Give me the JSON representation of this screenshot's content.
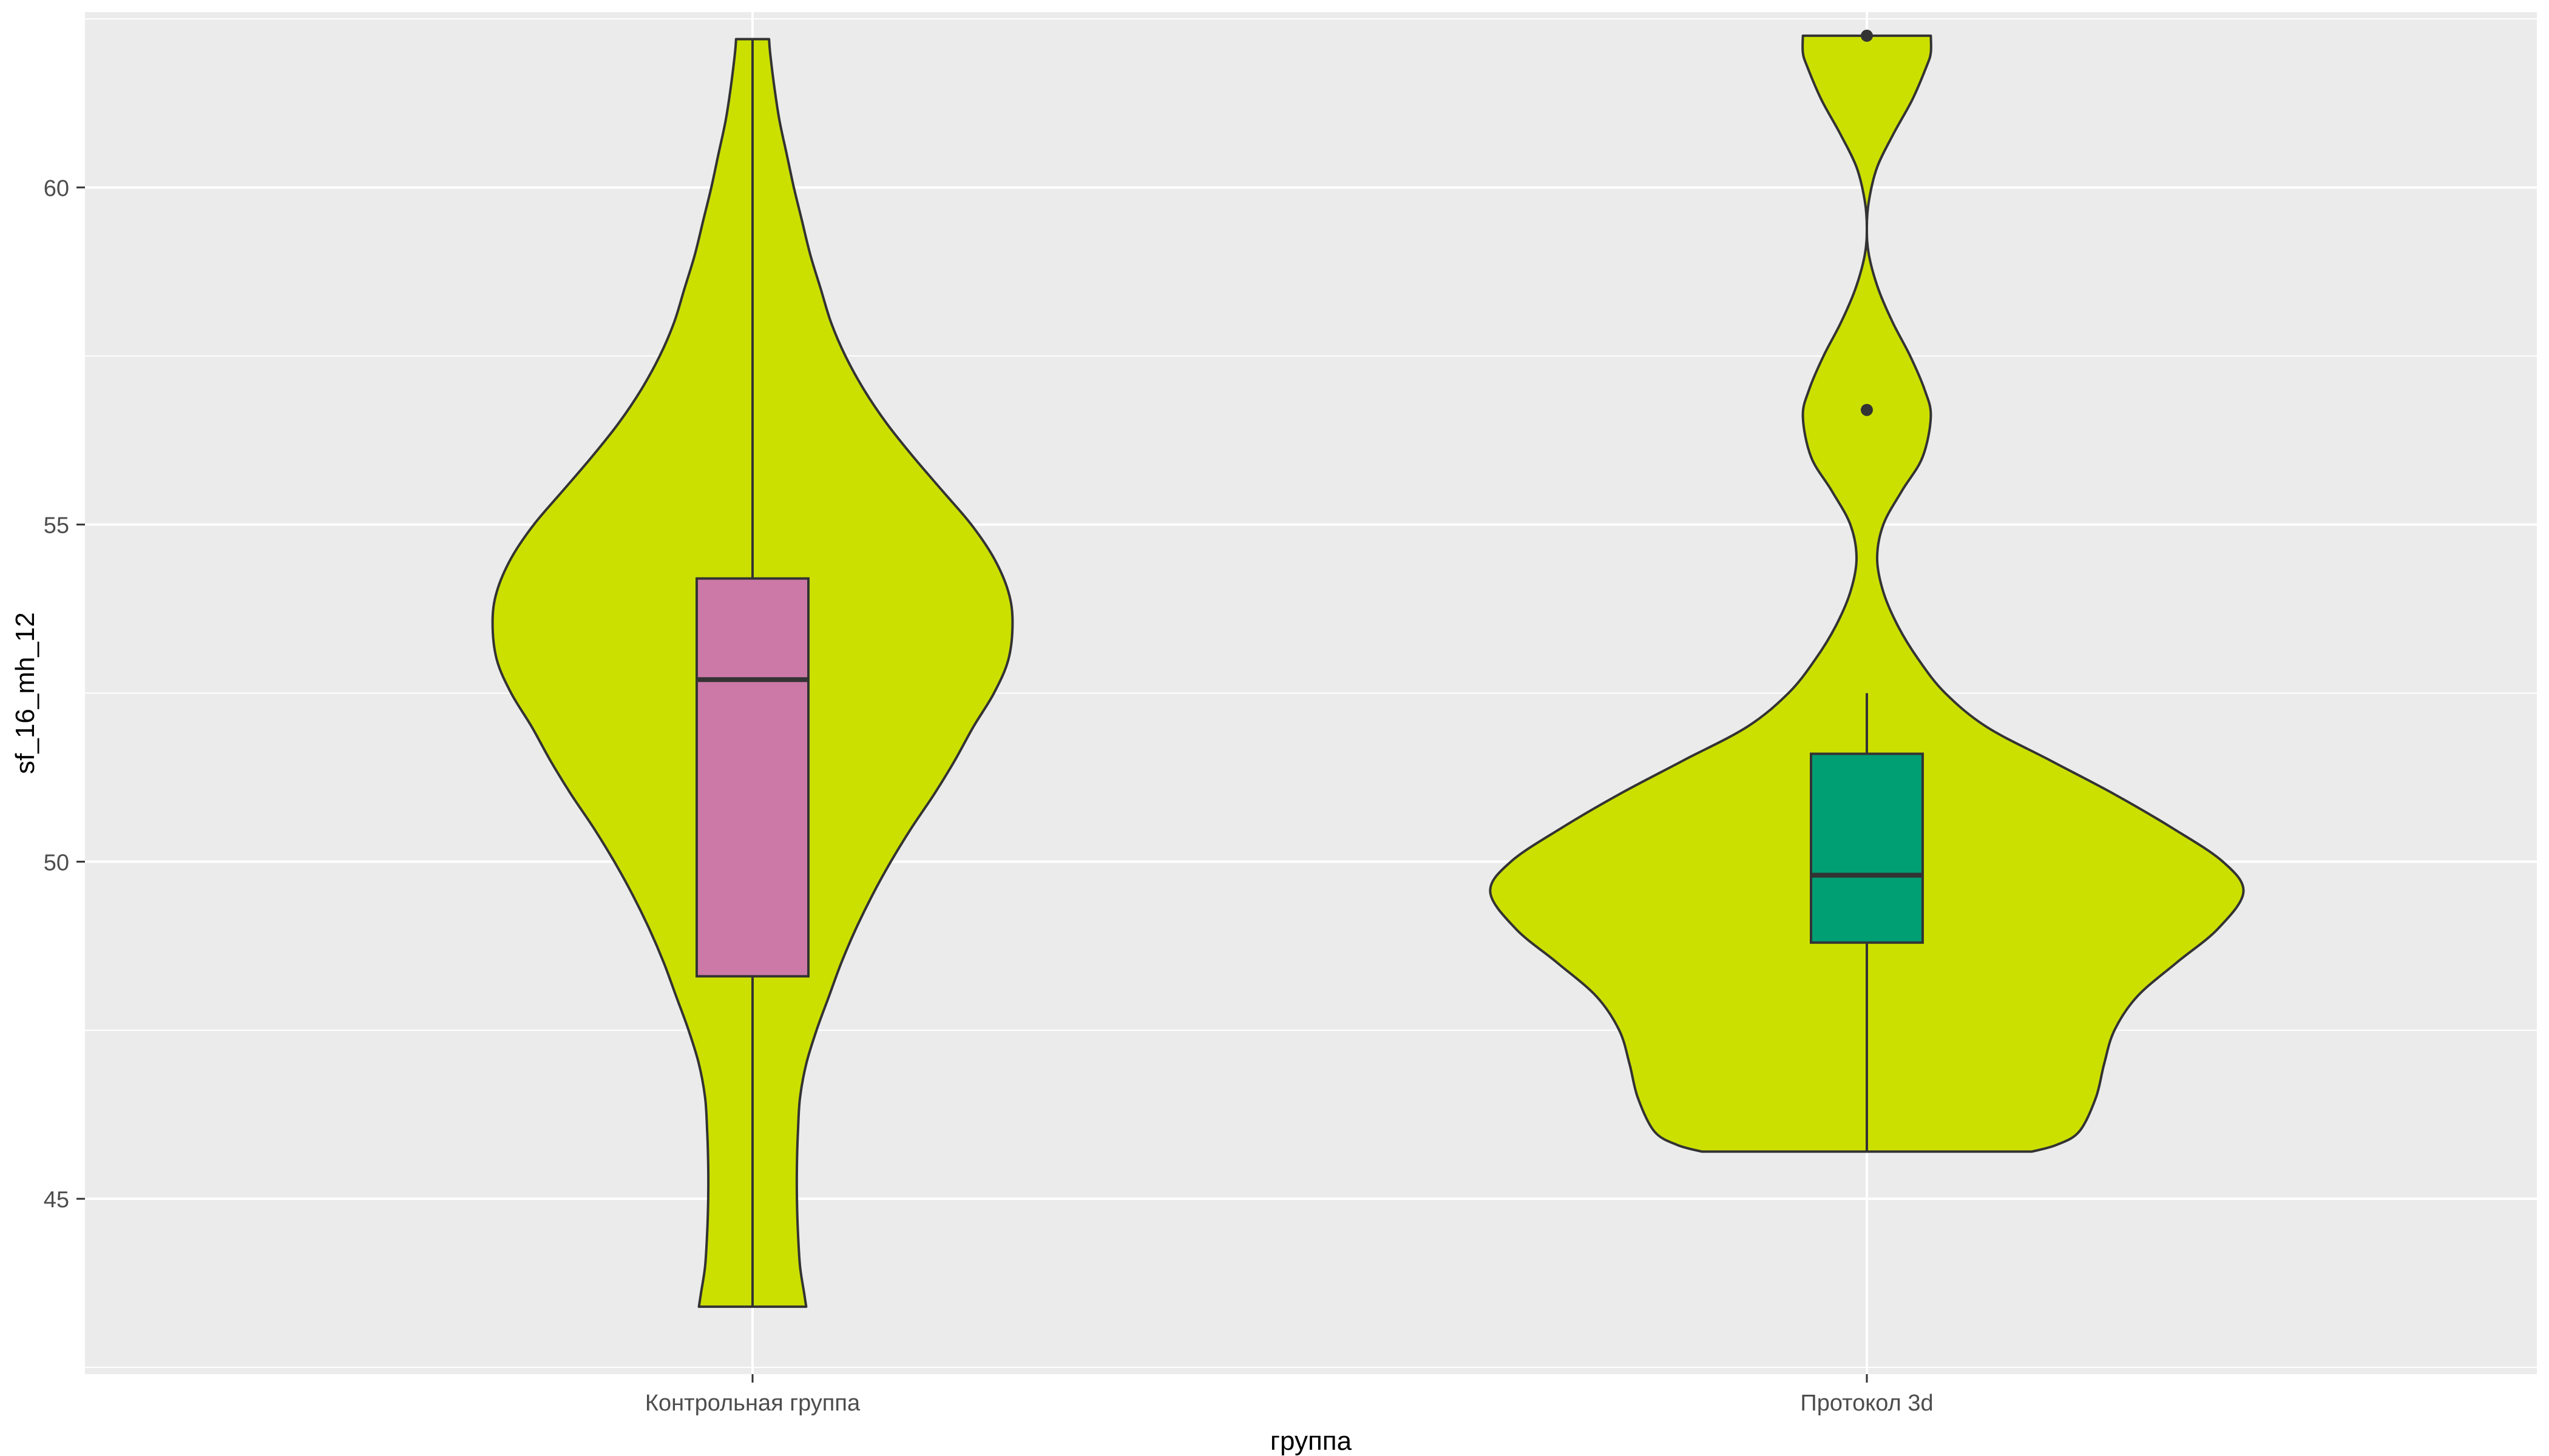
{
  "chart_data": {
    "type": "violin",
    "title": "",
    "xlabel": "группа",
    "ylabel": "sf_16_mh_12",
    "ylim": [
      42.4,
      62.6
    ],
    "yticks": [
      45,
      50,
      55,
      60
    ],
    "grid": true,
    "legend": "none",
    "categories": [
      "Контрольная группа",
      "Протокол 3d"
    ],
    "colors": {
      "panel": "#EBEBEB",
      "grid": "#FFFFFF",
      "violin_fill": "#CCE000",
      "outline": "#333333",
      "box_fill": [
        "#CC79A7",
        "#009E73"
      ]
    },
    "series": [
      {
        "category": "Контрольная группа",
        "violin_profile": [
          [
            43.4,
            0.52
          ],
          [
            43.6,
            0.5
          ],
          [
            44.0,
            0.46
          ],
          [
            44.5,
            0.44
          ],
          [
            45.0,
            0.43
          ],
          [
            45.5,
            0.43
          ],
          [
            46.0,
            0.44
          ],
          [
            46.5,
            0.46
          ],
          [
            47.0,
            0.52
          ],
          [
            47.5,
            0.62
          ],
          [
            48.0,
            0.74
          ],
          [
            48.5,
            0.86
          ],
          [
            49.0,
            1.0
          ],
          [
            49.5,
            1.16
          ],
          [
            50.0,
            1.34
          ],
          [
            50.5,
            1.54
          ],
          [
            51.0,
            1.76
          ],
          [
            51.5,
            1.96
          ],
          [
            52.0,
            2.14
          ],
          [
            52.5,
            2.34
          ],
          [
            53.0,
            2.48
          ],
          [
            53.55,
            2.52
          ],
          [
            54.0,
            2.48
          ],
          [
            54.5,
            2.34
          ],
          [
            55.0,
            2.12
          ],
          [
            55.5,
            1.84
          ],
          [
            56.0,
            1.56
          ],
          [
            56.5,
            1.3
          ],
          [
            57.0,
            1.08
          ],
          [
            57.5,
            0.9
          ],
          [
            58.0,
            0.76
          ],
          [
            58.5,
            0.66
          ],
          [
            59.0,
            0.56
          ],
          [
            59.5,
            0.48
          ],
          [
            60.0,
            0.4
          ],
          [
            60.5,
            0.33
          ],
          [
            61.0,
            0.26
          ],
          [
            61.5,
            0.21
          ],
          [
            62.0,
            0.17
          ],
          [
            62.2,
            0.16
          ]
        ],
        "box": {
          "whisker_low": 43.4,
          "q1": 48.3,
          "median": 52.7,
          "q3": 54.2,
          "whisker_high": 62.2
        },
        "outliers": []
      },
      {
        "category": "Протокол 3d",
        "violin_profile": [
          [
            45.7,
            1.6
          ],
          [
            45.8,
            1.84
          ],
          [
            46.0,
            2.06
          ],
          [
            46.5,
            2.22
          ],
          [
            47.0,
            2.3
          ],
          [
            47.5,
            2.4
          ],
          [
            48.0,
            2.62
          ],
          [
            48.5,
            3.0
          ],
          [
            49.0,
            3.4
          ],
          [
            49.55,
            3.65
          ],
          [
            50.0,
            3.45
          ],
          [
            50.5,
            2.96
          ],
          [
            51.0,
            2.4
          ],
          [
            51.5,
            1.78
          ],
          [
            52.0,
            1.16
          ],
          [
            52.5,
            0.76
          ],
          [
            53.0,
            0.5
          ],
          [
            53.5,
            0.3
          ],
          [
            54.0,
            0.16
          ],
          [
            54.5,
            0.1
          ],
          [
            55.0,
            0.16
          ],
          [
            55.5,
            0.34
          ],
          [
            56.0,
            0.54
          ],
          [
            56.6,
            0.62
          ],
          [
            57.0,
            0.56
          ],
          [
            57.5,
            0.42
          ],
          [
            58.0,
            0.25
          ],
          [
            58.5,
            0.11
          ],
          [
            59.0,
            0.02
          ],
          [
            59.4,
            0.0
          ],
          [
            59.8,
            0.02
          ],
          [
            60.3,
            0.1
          ],
          [
            60.8,
            0.26
          ],
          [
            61.3,
            0.44
          ],
          [
            61.8,
            0.58
          ],
          [
            62.0,
            0.62
          ],
          [
            62.25,
            0.62
          ]
        ],
        "box": {
          "whisker_low": 45.7,
          "q1": 48.8,
          "median": 49.8,
          "q3": 51.6,
          "whisker_high": 52.5
        },
        "outliers": [
          56.7,
          62.25
        ]
      }
    ]
  }
}
